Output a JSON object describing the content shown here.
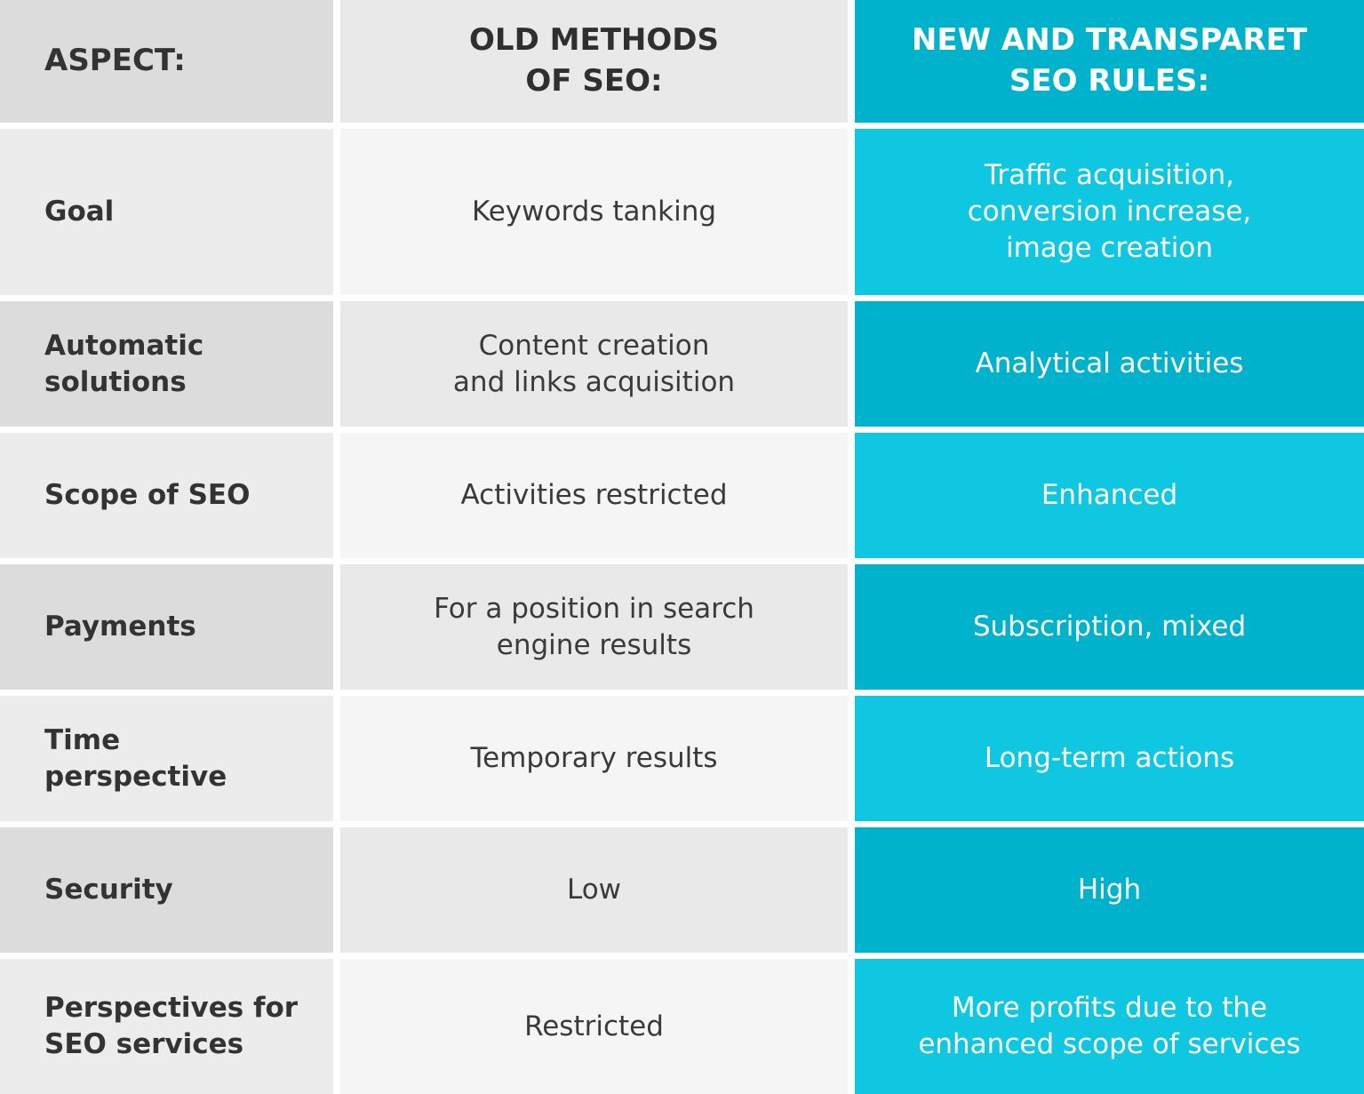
{
  "colors": {
    "cyan_dark": "#00b2cc",
    "cyan_light": "#0fc7e0",
    "aspect_gray_dark": "#dcdcdc",
    "aspect_gray_light": "#ececec",
    "old_gray_dark": "#e9e9e9",
    "old_gray_light": "#f5f5f5",
    "text_dark": "#333333",
    "text_white": "#ffffff"
  },
  "header": {
    "aspect": "ASPECT:",
    "old": [
      "OLD METHODS",
      "OF SEO:"
    ],
    "new": [
      "NEW AND TRANSPARET",
      "SEO RULES:"
    ]
  },
  "rows": [
    {
      "aspect": [
        "Goal"
      ],
      "old": [
        "Keywords tanking"
      ],
      "new": [
        "Traffic acquisition,",
        "conversion increase,",
        "image creation"
      ]
    },
    {
      "aspect": [
        "Automatic",
        "solutions"
      ],
      "old": [
        "Content creation",
        "and links acquisition"
      ],
      "new": [
        "Analytical activities"
      ]
    },
    {
      "aspect": [
        "Scope of SEO"
      ],
      "old": [
        "Activities restricted"
      ],
      "new": [
        "Enhanced"
      ]
    },
    {
      "aspect": [
        "Payments"
      ],
      "old": [
        "For a position in search",
        "engine results"
      ],
      "new": [
        "Subscription, mixed"
      ]
    },
    {
      "aspect": [
        "Time perspective"
      ],
      "old": [
        "Temporary results"
      ],
      "new": [
        "Long-term actions"
      ]
    },
    {
      "aspect": [
        "Security"
      ],
      "old": [
        "Low"
      ],
      "new": [
        "High"
      ]
    },
    {
      "aspect": [
        "Perspectives for",
        "SEO services"
      ],
      "old": [
        "Restricted"
      ],
      "new": [
        "More profits due to the",
        "enhanced scope of services"
      ]
    }
  ]
}
